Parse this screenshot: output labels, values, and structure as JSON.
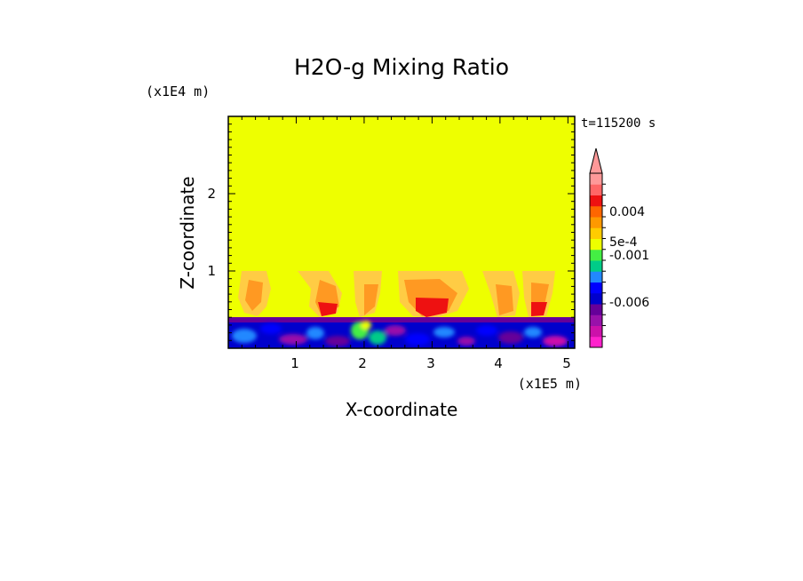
{
  "chart_data": {
    "type": "heatmap",
    "title": "H2O-g Mixing Ratio",
    "xlabel": "X-coordinate",
    "ylabel": "Z-coordinate",
    "x_scale_label": "(x1E5 m)",
    "y_scale_label": "(x1E4 m)",
    "time_label": "t=115200 s",
    "xlim": [
      0,
      5.1
    ],
    "ylim": [
      0,
      3.0
    ],
    "x_ticks": [
      1,
      2,
      3,
      4,
      5
    ],
    "x_tick_labels": [
      "1",
      "2",
      "3",
      "4",
      "5"
    ],
    "y_ticks": [
      1,
      2
    ],
    "y_tick_labels": [
      "1",
      "2"
    ],
    "background_level": "yellow (~0 to 5e-4)",
    "colorbar": {
      "colors": [
        "#ff22cc",
        "#cc11aa",
        "#9911aa",
        "#660099",
        "#0000cc",
        "#0000ff",
        "#2288ff",
        "#00cc88",
        "#44ee44",
        "#eeff00",
        "#ffcc00",
        "#ff9900",
        "#ff6600",
        "#ee1111",
        "#ff6666",
        "#ff9999"
      ],
      "label_values": [
        "0.004",
        "5e-4",
        "-0.001",
        "-0.006"
      ],
      "extend_top": true
    },
    "features": [
      {
        "name": "surface layer",
        "z_range": [
          0,
          0.4
        ],
        "values": "negative (blue/purple/magenta)"
      },
      {
        "name": "plumes",
        "x_centers": [
          0.3,
          1.4,
          2.0,
          3.0,
          4.1,
          4.6
        ],
        "z_top": 1.0,
        "values": "orange to red"
      }
    ]
  }
}
